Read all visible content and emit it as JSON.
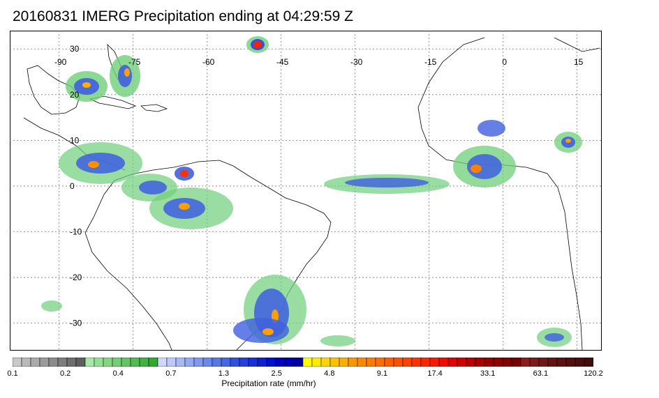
{
  "title": "20160831 IMERG Precipitation ending at 04:29:59 Z",
  "map": {
    "lon_labels": [
      "-90",
      "-75",
      "-60",
      "-45",
      "-30",
      "-15",
      "0",
      "15"
    ],
    "lat_labels": [
      "30",
      "20",
      "10",
      "0",
      "-10",
      "-20",
      "-30"
    ],
    "lon_values": [
      -90,
      -75,
      -60,
      -45,
      -30,
      -15,
      0,
      15
    ],
    "lat_values": [
      30,
      20,
      10,
      0,
      -10,
      -20,
      -30
    ],
    "extent": {
      "lon_min": -100,
      "lon_max": 20,
      "lat_min": -36,
      "lat_max": 34
    }
  },
  "colorbar": {
    "label": "Precipitation rate (mm/hr)",
    "tick_labels": [
      "0.1",
      "0.2",
      "0.4",
      "0.7",
      "1.3",
      "2.5",
      "4.8",
      "9.1",
      "17.4",
      "33.1",
      "63.1",
      "120.2"
    ],
    "colors": [
      "#c8c8c8",
      "#b9b9b9",
      "#aaaaaa",
      "#9b9b9b",
      "#8c8c8c",
      "#7d7d7d",
      "#6e6e6e",
      "#5f5f5f",
      "#a6e8a6",
      "#95df95",
      "#84d684",
      "#73cd73",
      "#62c462",
      "#51bb51",
      "#40b240",
      "#2fa92f",
      "#d0d8ff",
      "#bcc8fb",
      "#a8b8f7",
      "#94a8f3",
      "#8098ef",
      "#6c88eb",
      "#5878e7",
      "#4468e3",
      "#3050e0",
      "#2440dc",
      "#1830d8",
      "#0c20d4",
      "#0010d0",
      "#0000c4",
      "#0000b4",
      "#0000a4",
      "#ffff00",
      "#ffea00",
      "#ffd500",
      "#ffc000",
      "#ffab00",
      "#ff9600",
      "#ff8800",
      "#ff7a00",
      "#ff6c00",
      "#ff5e00",
      "#ff5000",
      "#ff4200",
      "#ff3400",
      "#ff2600",
      "#ff1800",
      "#f00a00",
      "#e00000",
      "#cc0000",
      "#b80000",
      "#a40000",
      "#960000",
      "#8c0000",
      "#820000",
      "#780000",
      "#8a1e1e",
      "#7d1b1b",
      "#701818",
      "#631515",
      "#5a1212",
      "#521010",
      "#4a0e0e",
      "#420c0c"
    ]
  }
}
